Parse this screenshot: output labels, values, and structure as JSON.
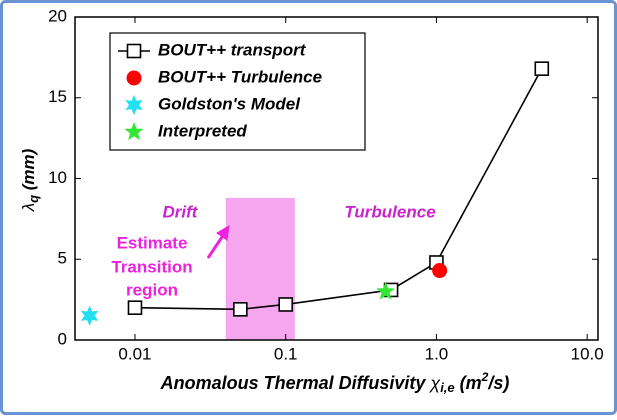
{
  "chart_data": {
    "type": "line",
    "xscale": "log",
    "xlabel_parts": [
      "Anomalous Thermal Diffusivity ",
      "χ",
      "i,e",
      " (m",
      "2",
      "/s)"
    ],
    "ylabel_parts": [
      "λ",
      "q",
      " (mm)"
    ],
    "xlim": [
      0.004,
      11.8
    ],
    "xticks": [
      0.01,
      0.1,
      {
        "value": 1,
        "label": "1.0"
      },
      {
        "value": 10,
        "label": "10.0"
      }
    ],
    "ylim": [
      0,
      20
    ],
    "yticks": [
      0,
      5,
      10,
      15,
      20
    ],
    "series": [
      {
        "name": "BOUT++ transport",
        "color": "#000000",
        "marker": "square",
        "line": true,
        "x": [
          0.01,
          0.05,
          0.1,
          0.5,
          1.0,
          5.0
        ],
        "values": [
          2.0,
          1.9,
          2.2,
          3.1,
          4.8,
          16.8
        ]
      },
      {
        "name": "BOUT++ Turbulence",
        "color": "#ff0000",
        "marker": "circle",
        "line": false,
        "x": [
          1.05
        ],
        "values": [
          4.3
        ]
      },
      {
        "name": "Goldston's Model",
        "color": "#22e0f0",
        "marker": "hexagram",
        "line": false,
        "x": [
          0.005
        ],
        "values": [
          1.5
        ]
      },
      {
        "name": "Interpreted",
        "color": "#33e633",
        "marker": "star",
        "line": false,
        "x": [
          0.46
        ],
        "values": [
          3.0
        ]
      }
    ],
    "shaded_region": {
      "x": [
        0.04,
        0.115
      ],
      "y": [
        0,
        8.8
      ],
      "color": "#f6a6ee"
    },
    "annotations": {
      "drift": "Drift",
      "turbulence": "Turbulence",
      "transition": [
        "Estimate",
        "Transition",
        "region"
      ],
      "color": "#cc22cc",
      "transition_color": "#ee22dd"
    },
    "legend": "upper left"
  }
}
